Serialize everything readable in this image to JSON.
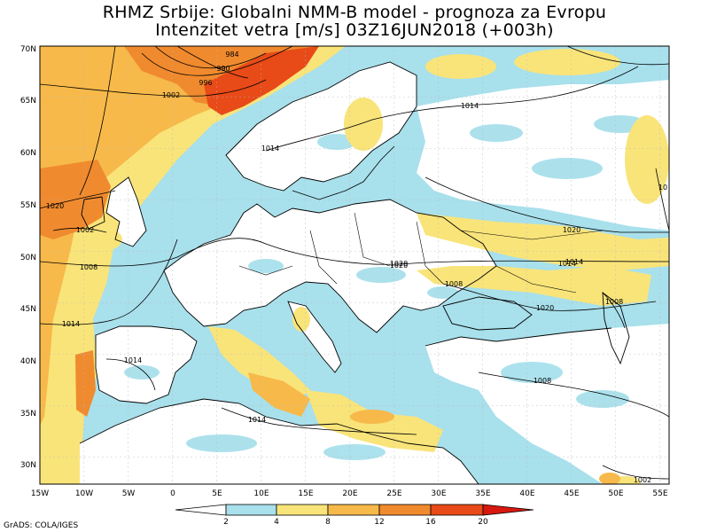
{
  "title": {
    "line1": "RHMZ Srbije: Globalni NMM-B model - prognoza za Evropu",
    "line2": "Intenzitet vetra [m/s] 03Z16JUN2018 (+003h)"
  },
  "credit": "GrADS: COLA/IGES",
  "axes": {
    "lat_labels": [
      "70N",
      "65N",
      "60N",
      "55N",
      "50N",
      "45N",
      "40N",
      "35N",
      "30N"
    ],
    "lon_labels": [
      "15W",
      "10W",
      "5W",
      "0",
      "5E",
      "10E",
      "15E",
      "20E",
      "25E",
      "30E",
      "35E",
      "40E",
      "45E",
      "50E",
      "55E"
    ]
  },
  "colorbar": {
    "ticks": [
      "2",
      "4",
      "8",
      "12",
      "16",
      "20"
    ],
    "colors": [
      "#ffffff",
      "#a8e0ec",
      "#f9e47a",
      "#f7b94a",
      "#f08a2e",
      "#e84a18",
      "#d81810"
    ]
  },
  "colors": {
    "sea_calm": "#a8e0ec",
    "land_calm": "#ffffff",
    "moderate": "#f9e47a",
    "fresh": "#f7b94a",
    "strong": "#f08a2e",
    "very_strong": "#e84a18"
  },
  "isobars": [
    {
      "value": "984"
    },
    {
      "value": "990"
    },
    {
      "value": "996"
    },
    {
      "value": "1002"
    },
    {
      "value": "1014"
    },
    {
      "value": "1020"
    },
    {
      "value": "1002"
    },
    {
      "value": "1008"
    },
    {
      "value": "1014"
    },
    {
      "value": "1020"
    },
    {
      "value": "1014"
    },
    {
      "value": "1014"
    },
    {
      "value": "1020"
    },
    {
      "value": "1014"
    },
    {
      "value": "1008"
    },
    {
      "value": "1020"
    },
    {
      "value": "1008"
    },
    {
      "value": "1008"
    },
    {
      "value": "1014"
    },
    {
      "value": "1002"
    },
    {
      "value": "1020"
    },
    {
      "value": "1014"
    },
    {
      "value": "10"
    }
  ]
}
